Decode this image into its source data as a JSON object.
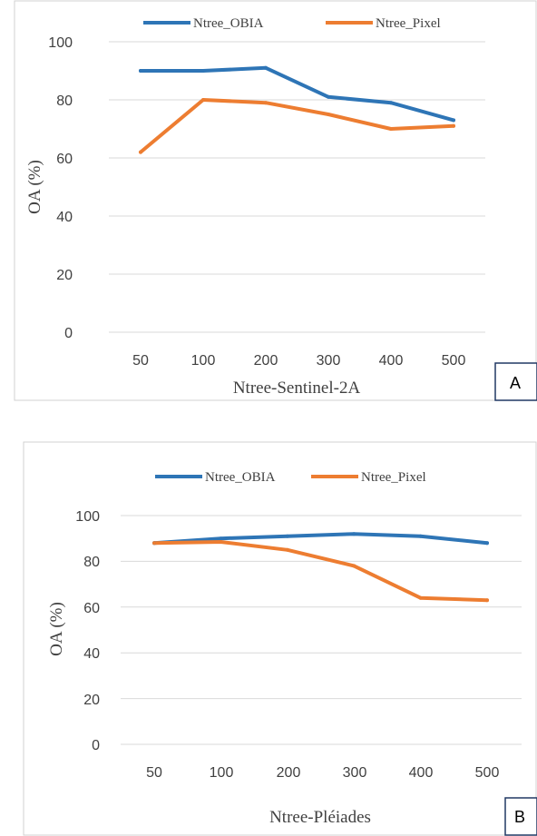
{
  "chart_data": [
    {
      "type": "line",
      "panel_label": "A",
      "categories": [
        "50",
        "100",
        "200",
        "300",
        "400",
        "500"
      ],
      "series": [
        {
          "name": "Ntree_OBIA",
          "color": "#2E75B6",
          "values": [
            90,
            90,
            91,
            81,
            79,
            73
          ]
        },
        {
          "name": "Ntree_Pixel",
          "color": "#ED7D31",
          "values": [
            62,
            80,
            79,
            75,
            70,
            71
          ]
        }
      ],
      "xlabel": "Ntree-Sentinel-2A",
      "ylabel": "OA (%)",
      "ylim": [
        0,
        100
      ],
      "yticks": [
        "0",
        "20",
        "40",
        "60",
        "80",
        "100"
      ],
      "grid": true,
      "legend": "top"
    },
    {
      "type": "line",
      "panel_label": "B",
      "categories": [
        "50",
        "100",
        "200",
        "300",
        "400",
        "500"
      ],
      "series": [
        {
          "name": "Ntree_OBIA",
          "color": "#2E75B6",
          "values": [
            88,
            90,
            91,
            92,
            91,
            88
          ]
        },
        {
          "name": "Ntree_Pixel",
          "color": "#ED7D31",
          "values": [
            88,
            88.5,
            85,
            78,
            64,
            63
          ]
        }
      ],
      "xlabel": "Ntree-Pléiades",
      "ylabel": "OA (%)",
      "ylim": [
        0,
        100
      ],
      "yticks": [
        "0",
        "20",
        "40",
        "60",
        "80",
        "100"
      ],
      "grid": true,
      "legend": "top"
    }
  ]
}
